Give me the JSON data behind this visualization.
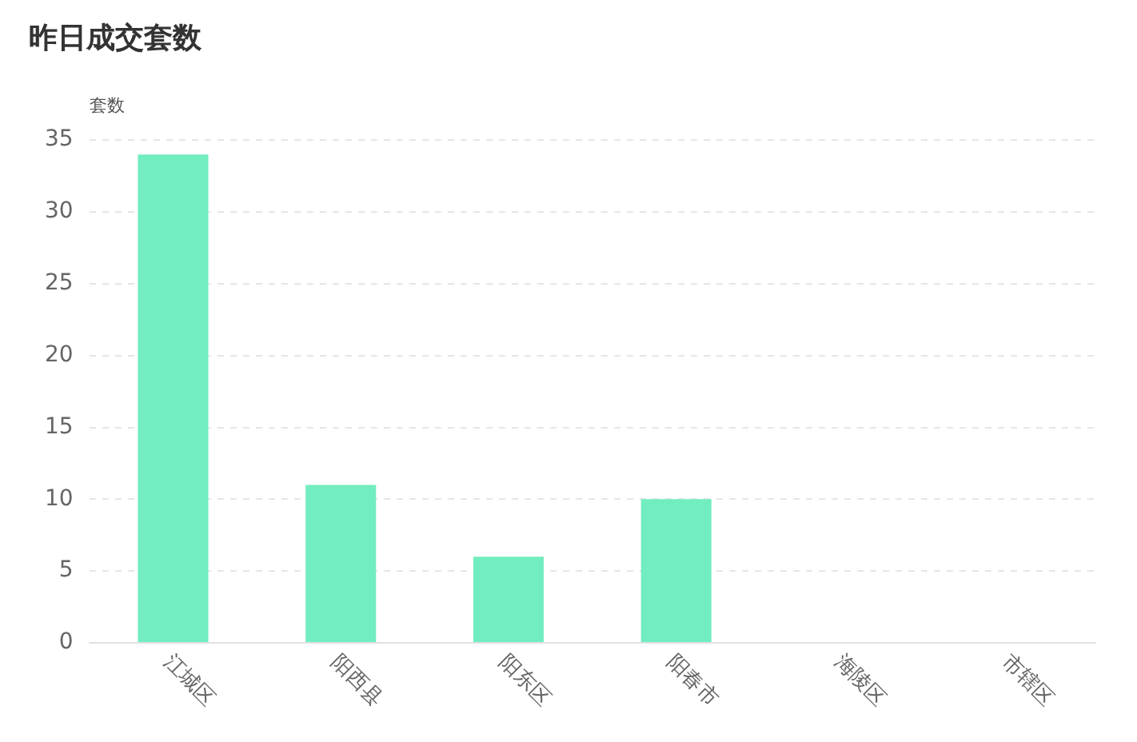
{
  "chart_data": {
    "type": "bar",
    "title": "昨日成交套数",
    "ylabel": "套数",
    "categories": [
      "江城区",
      "阳西县",
      "阳东区",
      "阳春市",
      "海陵区",
      "市辖区"
    ],
    "values": [
      34,
      11,
      6,
      10,
      0,
      0
    ],
    "color": "#72edbf",
    "ylim": [
      0,
      35
    ],
    "yticks": [
      0,
      5,
      10,
      15,
      20,
      25,
      30,
      35
    ],
    "grid": "y",
    "legend": false
  }
}
